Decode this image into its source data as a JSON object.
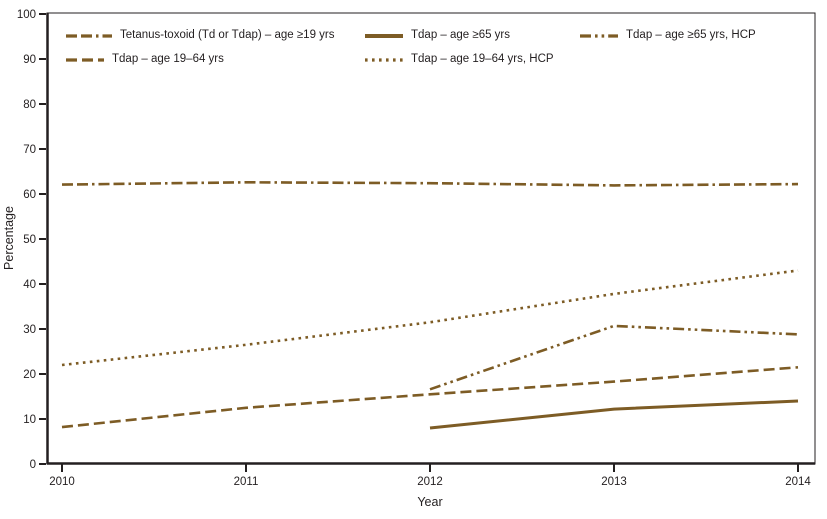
{
  "chart_data": {
    "type": "line",
    "x": [
      2010,
      2011,
      2012,
      2013,
      2014
    ],
    "series": [
      {
        "name": "Tetanus-toxoid (Td or Tdap) – age ≥19 yrs",
        "dash": "dash-dash-dot",
        "values": [
          62.1,
          62.6,
          62.4,
          61.9,
          62.2
        ]
      },
      {
        "name": "Tdap – age 19–64 yrs",
        "dash": "dashed",
        "values": [
          8.2,
          12.5,
          15.5,
          18.3,
          21.5
        ]
      },
      {
        "name": "Tdap – age ≥65 yrs",
        "dash": "solid",
        "values": [
          null,
          null,
          8.0,
          12.2,
          14.0
        ]
      },
      {
        "name": "Tdap – age 19–64 yrs, HCP",
        "dash": "dotted",
        "values": [
          22.0,
          26.5,
          31.5,
          37.8,
          43.0
        ]
      },
      {
        "name": "Tdap – age ≥65 yrs, HCP",
        "dash": "dash-dot-dot",
        "values": [
          null,
          null,
          16.6,
          30.7,
          28.8
        ]
      }
    ],
    "title": "",
    "xlabel": "Year",
    "ylabel": "Percentage",
    "ylim": [
      0,
      100
    ],
    "yticks": [
      0,
      10,
      20,
      30,
      40,
      50,
      60,
      70,
      80,
      90,
      100
    ],
    "xticks": [
      "2010",
      "2011",
      "2012",
      "2013",
      "2014"
    ],
    "legend_position": "top-left",
    "grid": false,
    "line_color": "#7d5c25",
    "axis_color": "#231f20",
    "text_color": "#231f20"
  }
}
